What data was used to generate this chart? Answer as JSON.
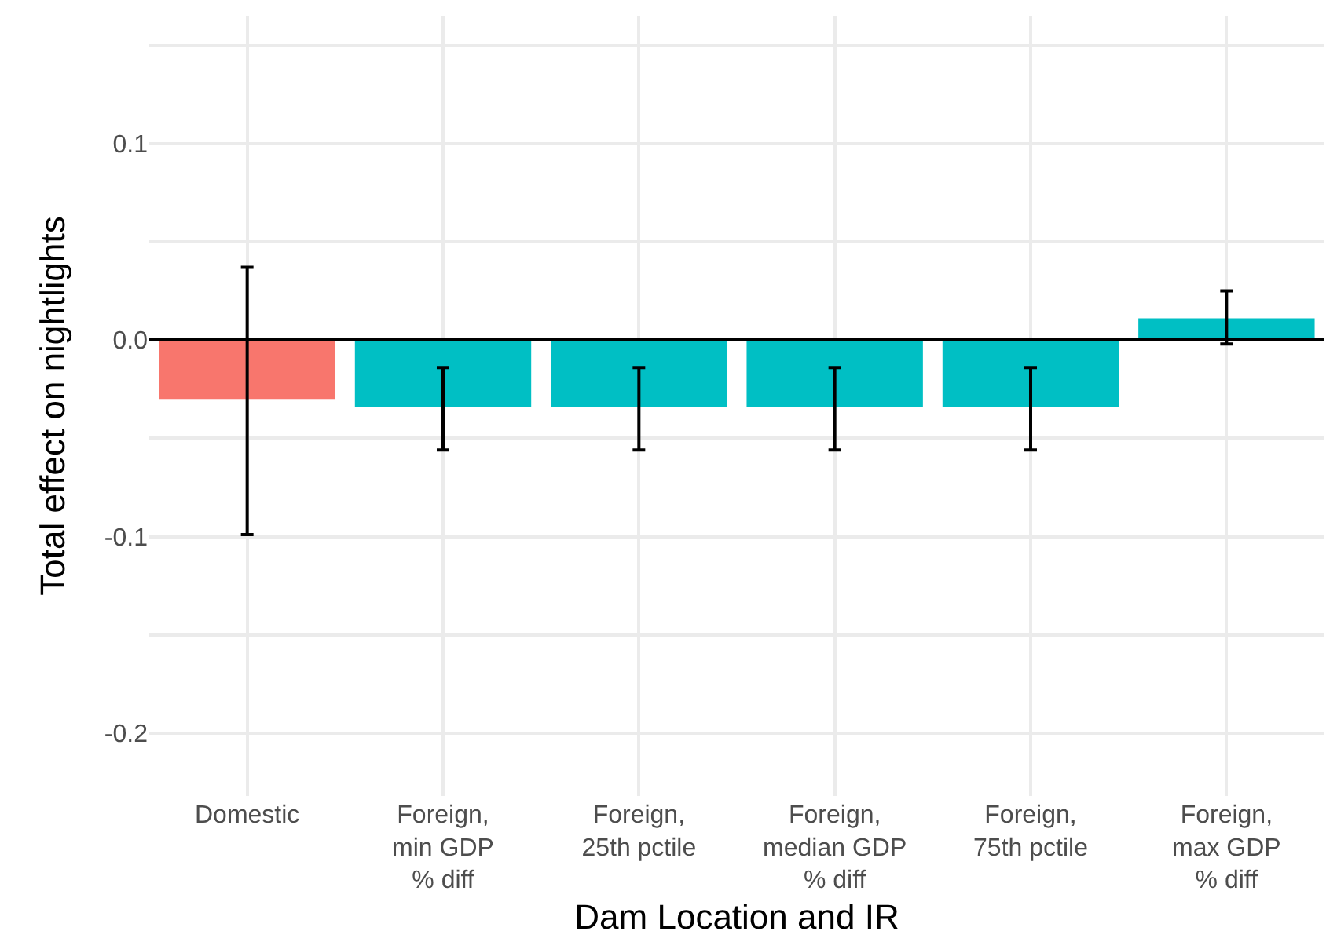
{
  "chart_data": {
    "type": "bar",
    "xlabel": "Dam Location and IR",
    "ylabel": "Total effect on nightlights",
    "categories": [
      "Domestic",
      "Foreign,\nmin GDP\n% diff",
      "Foreign,\n25th pctile",
      "Foreign,\nmedian GDP\n% diff",
      "Foreign,\n75th pctile",
      "Foreign,\nmax GDP\n% diff"
    ],
    "values": [
      -0.03,
      -0.034,
      -0.034,
      -0.034,
      -0.034,
      0.011
    ],
    "colors": [
      "#f8766d",
      "#00bfc4",
      "#00bfc4",
      "#00bfc4",
      "#00bfc4",
      "#00bfc4"
    ],
    "errors": [
      [
        -0.099,
        0.037
      ],
      [
        -0.056,
        -0.014
      ],
      [
        -0.056,
        -0.014
      ],
      [
        -0.056,
        -0.014
      ],
      [
        -0.056,
        -0.014
      ],
      [
        -0.002,
        0.025
      ]
    ],
    "ylim": [
      -0.232,
      0.165
    ],
    "yticks": [
      -0.2,
      {
        "value": -0.15,
        "label": null
      },
      -0.1,
      {
        "value": -0.05,
        "label": null
      },
      {
        "value": 0,
        "label": "0.0"
      },
      {
        "value": 0.05,
        "label": null
      },
      0.1,
      {
        "value": 0.15,
        "label": null
      }
    ],
    "ref_lines": [
      {
        "axis": "y",
        "value": 0,
        "color": "#000000"
      }
    ],
    "grid": true
  }
}
